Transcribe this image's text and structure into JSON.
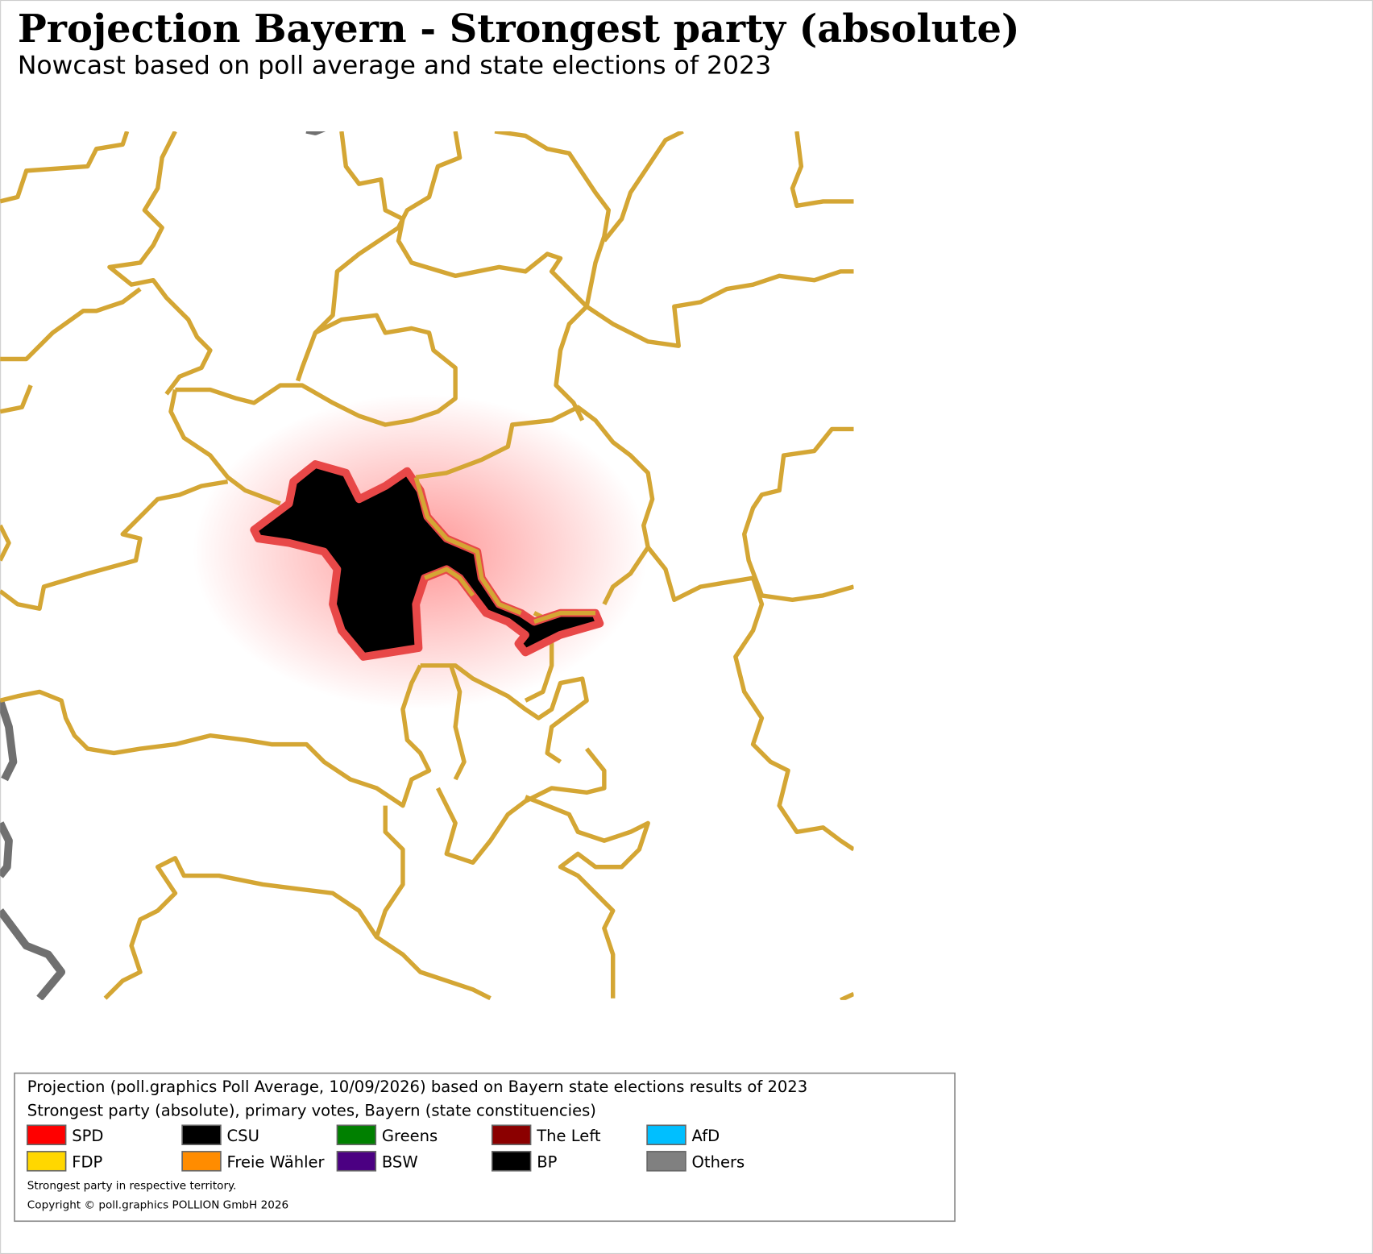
{
  "header": {
    "title": "Projection Bayern - Strongest party (absolute)",
    "subtitle": "Nowcast based on poll average and state elections of 2023"
  },
  "legend": {
    "lines": [
      "Projection (poll.graphics Poll Average, 10/09/2026) based on Bayern state elections results of 2023",
      "Strongest party (absolute), primary votes, Bayern (state constituencies)"
    ],
    "items": [
      {
        "name": "SPD",
        "color": "#ff0000"
      },
      {
        "name": "CSU",
        "color": "#000000"
      },
      {
        "name": "Greens",
        "color": "#008000"
      },
      {
        "name": "The Left",
        "color": "#8b0000"
      },
      {
        "name": "AfD",
        "color": "#00bfff"
      },
      {
        "name": "FDP",
        "color": "#ffd700"
      },
      {
        "name": "Freie Wähler",
        "color": "#ff8c00"
      },
      {
        "name": "BSW",
        "color": "#4b0082"
      },
      {
        "name": "BP",
        "color": "#000000"
      },
      {
        "name": "Others",
        "color": "#808080"
      }
    ],
    "notes": [
      "Strongest party in respective territory.",
      "Copyright © poll.graphics POLLION GmbH 2026"
    ]
  }
}
